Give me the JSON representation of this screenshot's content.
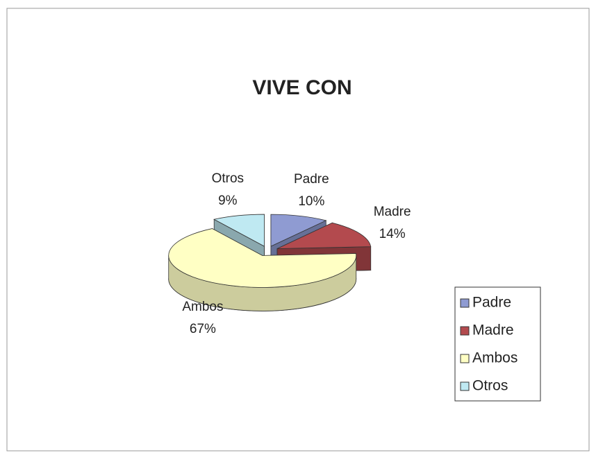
{
  "chart_data": {
    "type": "pie",
    "title": "VIVE CON",
    "categories": [
      "Padre",
      "Madre",
      "Ambos",
      "Otros"
    ],
    "values": [
      10,
      14,
      67,
      9
    ],
    "value_labels": [
      "10%",
      "14%",
      "67%",
      "9%"
    ],
    "colors": [
      "#8f9bd2",
      "#b34a4e",
      "#ffffc4",
      "#bfe9f2"
    ],
    "legend": "right"
  }
}
